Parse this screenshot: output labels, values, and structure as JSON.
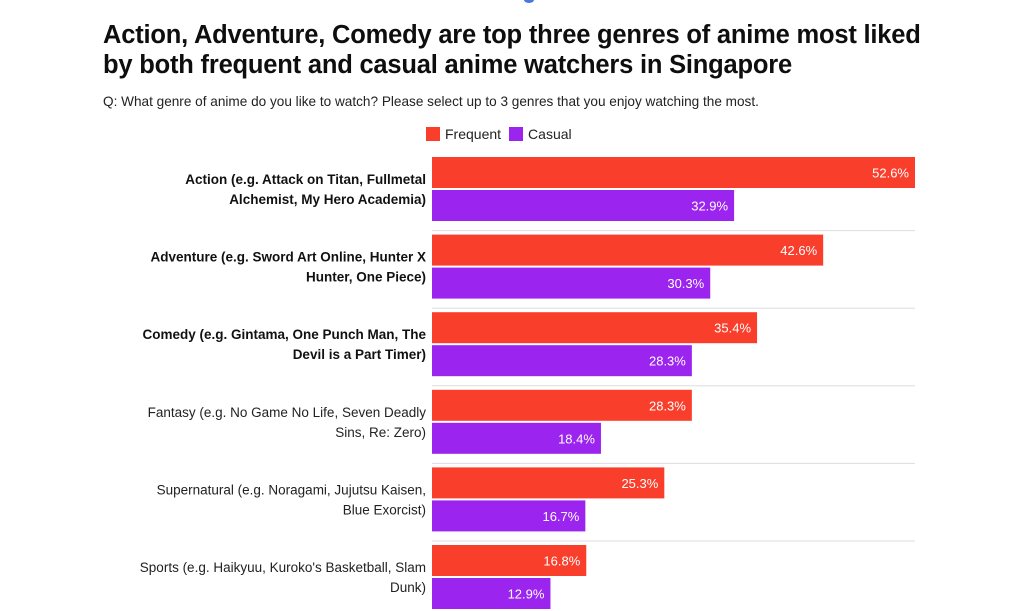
{
  "title": "Action, Adventure, Comedy are top three genres of anime most liked by both frequent and casual anime watchers in Singapore",
  "subtitle": "Q: What genre of anime do you like to watch? Please select up to 3 genres that you enjoy watching the most.",
  "colors": {
    "frequent": "#fa3e2c",
    "casual": "#9b24ee",
    "divider": "#dddddd"
  },
  "chart_data": {
    "type": "bar",
    "orientation": "horizontal",
    "title": "Action, Adventure, Comedy are top three genres of anime most liked by both frequent and casual anime watchers in Singapore",
    "subtitle": "Q: What genre of anime do you like to watch? Please select up to 3 genres that you enjoy watching the most.",
    "legend": [
      "Frequent",
      "Casual"
    ],
    "legend_position": "top-center",
    "xlim": [
      0,
      52.6
    ],
    "grid": false,
    "categories": [
      {
        "lines": [
          "Action (e.g. Attack on Titan, Fullmetal",
          "Alchemist, My Hero Academia)"
        ],
        "bold": true
      },
      {
        "lines": [
          "Adventure (e.g. Sword Art Online, Hunter X",
          "Hunter, One Piece)"
        ],
        "bold": true
      },
      {
        "lines": [
          "Comedy (e.g. Gintama, One Punch Man, The",
          "Devil is a Part Timer)"
        ],
        "bold": true
      },
      {
        "lines": [
          "Fantasy (e.g. No Game No Life, Seven Deadly",
          "Sins, Re: Zero)"
        ],
        "bold": false
      },
      {
        "lines": [
          "Supernatural (e.g. Noragami, Jujutsu Kaisen,",
          "Blue Exorcist)"
        ],
        "bold": false
      },
      {
        "lines": [
          "Sports (e.g. Haikyuu, Kuroko's Basketball, Slam",
          "Dunk)"
        ],
        "bold": false
      }
    ],
    "series": [
      {
        "name": "Frequent",
        "values": [
          52.6,
          42.6,
          35.4,
          28.3,
          25.3,
          16.8
        ],
        "labels": [
          "52.6%",
          "42.6%",
          "35.4%",
          "28.3%",
          "25.3%",
          "16.8%"
        ]
      },
      {
        "name": "Casual",
        "values": [
          32.9,
          30.3,
          28.3,
          18.4,
          16.7,
          12.9
        ],
        "labels": [
          "32.9%",
          "30.3%",
          "28.3%",
          "18.4%",
          "16.7%",
          "12.9%"
        ]
      }
    ]
  }
}
